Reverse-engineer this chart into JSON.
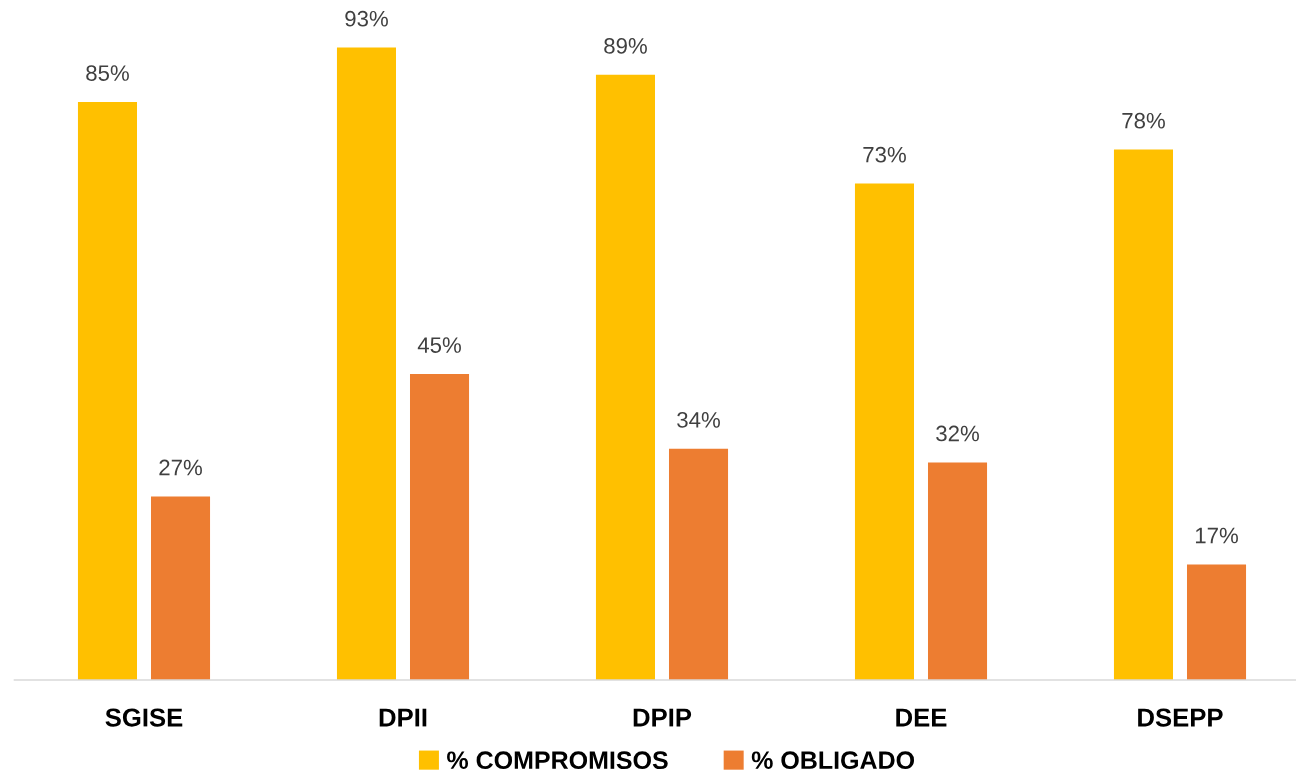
{
  "chart_data": {
    "type": "bar",
    "categories": [
      "SGISE",
      "DPII",
      "DPIP",
      "DEE",
      "DSEPP"
    ],
    "series": [
      {
        "name": "% COMPROMISOS",
        "color": "#ffc000",
        "values": [
          85,
          93,
          89,
          73,
          78
        ],
        "value_labels": [
          "85%",
          "93%",
          "89%",
          "73%",
          "78%"
        ]
      },
      {
        "name": "% OBLIGADO",
        "color": "#ed7d31",
        "values": [
          27,
          45,
          34,
          32,
          17
        ],
        "value_labels": [
          "27%",
          "45%",
          "34%",
          "32%",
          "17%"
        ]
      }
    ],
    "tick_labels": "x",
    "legend": "bottom"
  }
}
